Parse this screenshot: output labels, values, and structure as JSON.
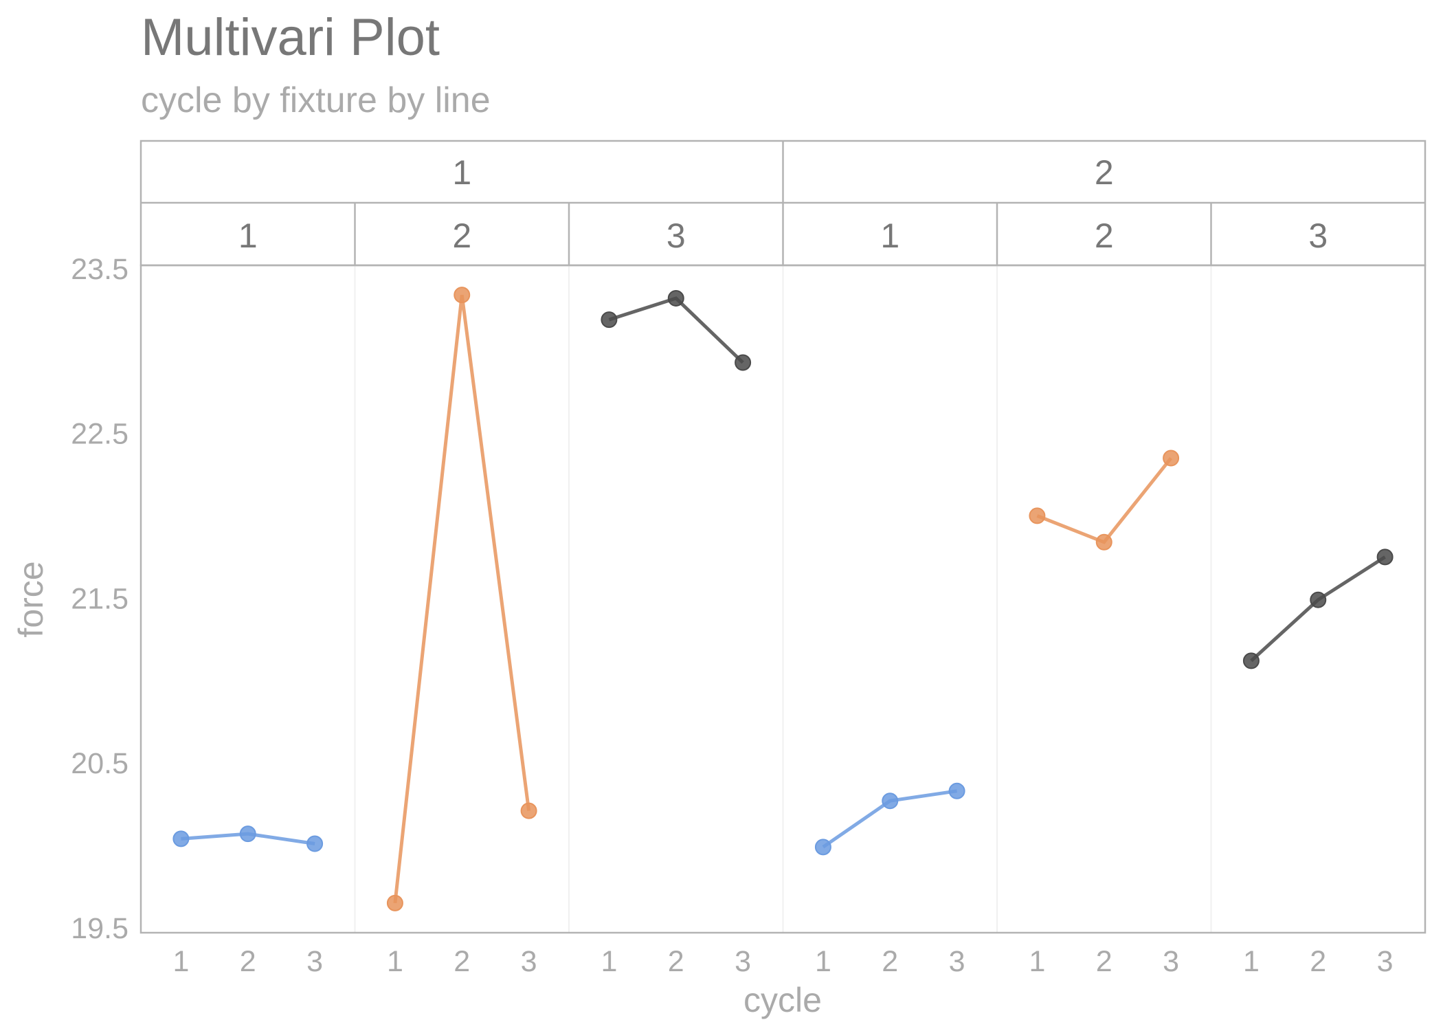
{
  "chart_data": {
    "type": "line",
    "title": "Multivari Plot",
    "subtitle": "cycle by fixture by line",
    "xlabel": "cycle",
    "ylabel": "force",
    "ylim": [
      19.47,
      23.52
    ],
    "yticks": [
      "19.5",
      "20.5",
      "21.5",
      "22.5",
      "23.5"
    ],
    "x_categories": [
      "1",
      "2",
      "3"
    ],
    "grid": true,
    "facet_outer_labels": [
      "1",
      "2"
    ],
    "facet_inner_labels": [
      "1",
      "2",
      "3"
    ],
    "colors": {
      "1": "#6b9be0",
      "2": "#e8945c",
      "3": "#4a4a4a"
    },
    "panels": [
      {
        "line": "1",
        "fixture": "1",
        "values": [
          20.04,
          20.07,
          20.01
        ]
      },
      {
        "line": "1",
        "fixture": "2",
        "values": [
          19.65,
          23.34,
          20.21
        ]
      },
      {
        "line": "1",
        "fixture": "3",
        "values": [
          23.19,
          23.32,
          22.93
        ]
      },
      {
        "line": "2",
        "fixture": "1",
        "values": [
          19.99,
          20.27,
          20.33
        ]
      },
      {
        "line": "2",
        "fixture": "2",
        "values": [
          22.0,
          21.84,
          22.35
        ]
      },
      {
        "line": "2",
        "fixture": "3",
        "values": [
          21.12,
          21.49,
          21.75
        ]
      }
    ]
  }
}
